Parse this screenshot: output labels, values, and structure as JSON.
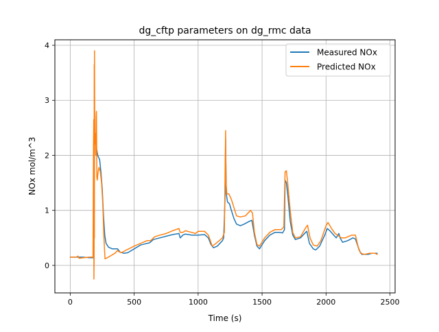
{
  "chart_data": {
    "type": "line",
    "title": "dg_cftp parameters on dg_rmc data",
    "xlabel": "Time (s)",
    "ylabel": "NOx mol/m^3",
    "xlim": [
      -120,
      2540
    ],
    "ylim": [
      -0.5,
      4.1
    ],
    "xticks": [
      0,
      500,
      1000,
      1500,
      2000,
      2500
    ],
    "yticks": [
      0,
      1,
      2,
      3,
      4
    ],
    "xtick_labels": [
      "0",
      "500",
      "1000",
      "1500",
      "2000",
      "2500"
    ],
    "ytick_labels": [
      "0",
      "1",
      "2",
      "3",
      "4"
    ],
    "grid": true,
    "legend_position": "top-right",
    "series": [
      {
        "name": "Measured NOx",
        "color": "#1f77b4",
        "points": [
          [
            0,
            0.15
          ],
          [
            50,
            0.15
          ],
          [
            100,
            0.15
          ],
          [
            150,
            0.14
          ],
          [
            180,
            0.14
          ],
          [
            182,
            1.2
          ],
          [
            184,
            2.1
          ],
          [
            186,
            2.2
          ],
          [
            190,
            2.25
          ],
          [
            200,
            2.2
          ],
          [
            215,
            2.0
          ],
          [
            230,
            1.92
          ],
          [
            240,
            1.7
          ],
          [
            250,
            1.4
          ],
          [
            260,
            0.9
          ],
          [
            270,
            0.55
          ],
          [
            280,
            0.4
          ],
          [
            300,
            0.33
          ],
          [
            330,
            0.3
          ],
          [
            350,
            0.3
          ],
          [
            370,
            0.3
          ],
          [
            390,
            0.24
          ],
          [
            420,
            0.22
          ],
          [
            450,
            0.23
          ],
          [
            500,
            0.3
          ],
          [
            550,
            0.37
          ],
          [
            600,
            0.4
          ],
          [
            620,
            0.41
          ],
          [
            650,
            0.47
          ],
          [
            700,
            0.5
          ],
          [
            750,
            0.53
          ],
          [
            800,
            0.56
          ],
          [
            850,
            0.58
          ],
          [
            860,
            0.5
          ],
          [
            880,
            0.55
          ],
          [
            900,
            0.57
          ],
          [
            950,
            0.55
          ],
          [
            1000,
            0.55
          ],
          [
            1050,
            0.56
          ],
          [
            1080,
            0.5
          ],
          [
            1100,
            0.38
          ],
          [
            1120,
            0.32
          ],
          [
            1150,
            0.35
          ],
          [
            1190,
            0.45
          ],
          [
            1200,
            0.5
          ],
          [
            1210,
            1.2
          ],
          [
            1215,
            2.3
          ],
          [
            1220,
            1.3
          ],
          [
            1230,
            1.15
          ],
          [
            1245,
            1.12
          ],
          [
            1260,
            1.0
          ],
          [
            1280,
            0.85
          ],
          [
            1300,
            0.75
          ],
          [
            1330,
            0.72
          ],
          [
            1360,
            0.75
          ],
          [
            1400,
            0.8
          ],
          [
            1420,
            0.82
          ],
          [
            1440,
            0.55
          ],
          [
            1460,
            0.35
          ],
          [
            1480,
            0.3
          ],
          [
            1520,
            0.45
          ],
          [
            1560,
            0.55
          ],
          [
            1600,
            0.6
          ],
          [
            1640,
            0.6
          ],
          [
            1660,
            0.59
          ],
          [
            1675,
            0.65
          ],
          [
            1680,
            1.55
          ],
          [
            1690,
            1.5
          ],
          [
            1700,
            1.3
          ],
          [
            1720,
            0.8
          ],
          [
            1740,
            0.55
          ],
          [
            1760,
            0.47
          ],
          [
            1800,
            0.5
          ],
          [
            1840,
            0.6
          ],
          [
            1850,
            0.62
          ],
          [
            1870,
            0.4
          ],
          [
            1900,
            0.3
          ],
          [
            1920,
            0.28
          ],
          [
            1950,
            0.35
          ],
          [
            1990,
            0.55
          ],
          [
            2010,
            0.67
          ],
          [
            2030,
            0.63
          ],
          [
            2060,
            0.55
          ],
          [
            2080,
            0.5
          ],
          [
            2100,
            0.58
          ],
          [
            2110,
            0.5
          ],
          [
            2130,
            0.42
          ],
          [
            2170,
            0.45
          ],
          [
            2210,
            0.5
          ],
          [
            2230,
            0.48
          ],
          [
            2260,
            0.27
          ],
          [
            2280,
            0.2
          ],
          [
            2330,
            0.2
          ],
          [
            2360,
            0.22
          ],
          [
            2400,
            0.22
          ]
        ]
      },
      {
        "name": "Predicted NOx",
        "color": "#ff7f0e",
        "points": [
          [
            0,
            0.15
          ],
          [
            50,
            0.15
          ],
          [
            60,
            0.17
          ],
          [
            70,
            0.13
          ],
          [
            100,
            0.14
          ],
          [
            150,
            0.15
          ],
          [
            178,
            0.15
          ],
          [
            180,
            1.0
          ],
          [
            182,
            2.15
          ],
          [
            184,
            2.65
          ],
          [
            185,
            -0.25
          ],
          [
            187,
            0.1
          ],
          [
            188,
            3.65
          ],
          [
            189,
            0.5
          ],
          [
            190,
            3.9
          ],
          [
            192,
            2.2
          ],
          [
            195,
            2.4
          ],
          [
            198,
            2.35
          ],
          [
            200,
            2.0
          ],
          [
            203,
            2.7
          ],
          [
            205,
            2.8
          ],
          [
            208,
            1.6
          ],
          [
            212,
            1.55
          ],
          [
            218,
            1.7
          ],
          [
            225,
            1.78
          ],
          [
            235,
            1.7
          ],
          [
            245,
            1.5
          ],
          [
            255,
            1.1
          ],
          [
            262,
            0.6
          ],
          [
            268,
            0.3
          ],
          [
            272,
            0.12
          ],
          [
            290,
            0.14
          ],
          [
            320,
            0.18
          ],
          [
            350,
            0.22
          ],
          [
            370,
            0.27
          ],
          [
            380,
            0.25
          ],
          [
            400,
            0.23
          ],
          [
            440,
            0.28
          ],
          [
            500,
            0.35
          ],
          [
            550,
            0.4
          ],
          [
            600,
            0.45
          ],
          [
            630,
            0.45
          ],
          [
            660,
            0.52
          ],
          [
            700,
            0.55
          ],
          [
            750,
            0.58
          ],
          [
            800,
            0.63
          ],
          [
            850,
            0.67
          ],
          [
            860,
            0.6
          ],
          [
            880,
            0.6
          ],
          [
            900,
            0.63
          ],
          [
            950,
            0.6
          ],
          [
            980,
            0.58
          ],
          [
            1000,
            0.62
          ],
          [
            1050,
            0.62
          ],
          [
            1080,
            0.55
          ],
          [
            1110,
            0.35
          ],
          [
            1140,
            0.4
          ],
          [
            1190,
            0.5
          ],
          [
            1205,
            0.6
          ],
          [
            1210,
            1.5
          ],
          [
            1215,
            2.45
          ],
          [
            1218,
            1.5
          ],
          [
            1225,
            1.3
          ],
          [
            1240,
            1.3
          ],
          [
            1260,
            1.2
          ],
          [
            1280,
            1.05
          ],
          [
            1300,
            0.9
          ],
          [
            1330,
            0.88
          ],
          [
            1370,
            0.9
          ],
          [
            1410,
            1.0
          ],
          [
            1425,
            0.95
          ],
          [
            1440,
            0.6
          ],
          [
            1460,
            0.38
          ],
          [
            1480,
            0.35
          ],
          [
            1520,
            0.5
          ],
          [
            1560,
            0.6
          ],
          [
            1600,
            0.65
          ],
          [
            1650,
            0.65
          ],
          [
            1670,
            0.7
          ],
          [
            1680,
            1.7
          ],
          [
            1690,
            1.72
          ],
          [
            1700,
            1.5
          ],
          [
            1720,
            1.0
          ],
          [
            1740,
            0.6
          ],
          [
            1760,
            0.5
          ],
          [
            1800,
            0.52
          ],
          [
            1840,
            0.68
          ],
          [
            1855,
            0.73
          ],
          [
            1875,
            0.5
          ],
          [
            1900,
            0.37
          ],
          [
            1930,
            0.35
          ],
          [
            1960,
            0.45
          ],
          [
            2000,
            0.72
          ],
          [
            2015,
            0.78
          ],
          [
            2040,
            0.68
          ],
          [
            2070,
            0.58
          ],
          [
            2090,
            0.55
          ],
          [
            2120,
            0.5
          ],
          [
            2150,
            0.5
          ],
          [
            2200,
            0.55
          ],
          [
            2230,
            0.55
          ],
          [
            2250,
            0.35
          ],
          [
            2270,
            0.22
          ],
          [
            2300,
            0.2
          ],
          [
            2340,
            0.22
          ],
          [
            2380,
            0.22
          ],
          [
            2400,
            0.2
          ]
        ]
      }
    ]
  }
}
